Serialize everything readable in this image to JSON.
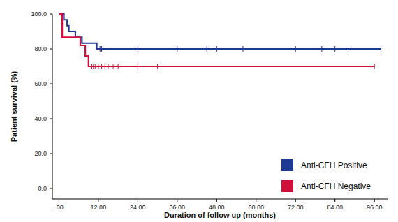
{
  "chart_data": {
    "type": "step",
    "x_label": "Duration of follow up (months)",
    "y_label": "Patient survival (%)",
    "xlim": [
      -2,
      100
    ],
    "ylim": [
      -6,
      100
    ],
    "xticks": [
      {
        "value": 0,
        "label": ".00"
      },
      {
        "value": 12,
        "label": "12.00"
      },
      {
        "value": 24,
        "label": "24.00"
      },
      {
        "value": 36,
        "label": "36.00"
      },
      {
        "value": 48,
        "label": "48.00"
      },
      {
        "value": 60,
        "label": "60.00"
      },
      {
        "value": 72,
        "label": "72.00"
      },
      {
        "value": 84,
        "label": "84.00"
      },
      {
        "value": 96,
        "label": "96.00"
      }
    ],
    "yticks": [
      {
        "value": 0,
        "label": "0.0"
      },
      {
        "value": 20,
        "label": "20.0"
      },
      {
        "value": 40,
        "label": "40.0"
      },
      {
        "value": 60,
        "label": "60.0"
      },
      {
        "value": 80,
        "label": "80.0"
      },
      {
        "value": 100,
        "label": "100.0"
      }
    ],
    "grid": false,
    "legend": "lower right",
    "series": [
      {
        "name": "Anti-CFH Positive",
        "color": "#1f3a93",
        "x": [
          0,
          1.5,
          2.5,
          3,
          5,
          7,
          11.5,
          98
        ],
        "values": [
          100,
          96.7,
          93.3,
          90,
          86.7,
          83.3,
          80,
          80
        ],
        "censor_x": [
          12.5,
          13,
          24,
          36,
          45,
          48,
          56,
          72,
          80,
          84,
          88,
          98
        ],
        "censor_values": [
          80,
          80,
          80,
          80,
          80,
          80,
          80,
          80,
          80,
          80,
          80,
          80
        ]
      },
      {
        "name": "Anti-CFH Negative",
        "color": "#d0103a",
        "x": [
          0,
          1,
          6.5,
          8,
          9,
          96
        ],
        "values": [
          100,
          86.7,
          82,
          76,
          70,
          70
        ],
        "censor_x": [
          10,
          10.5,
          11,
          12,
          13,
          14,
          15,
          16.5,
          18,
          24,
          30,
          96
        ],
        "censor_values": [
          70,
          70,
          70,
          70,
          70,
          70,
          70,
          70,
          70,
          70,
          70,
          70
        ]
      }
    ]
  }
}
